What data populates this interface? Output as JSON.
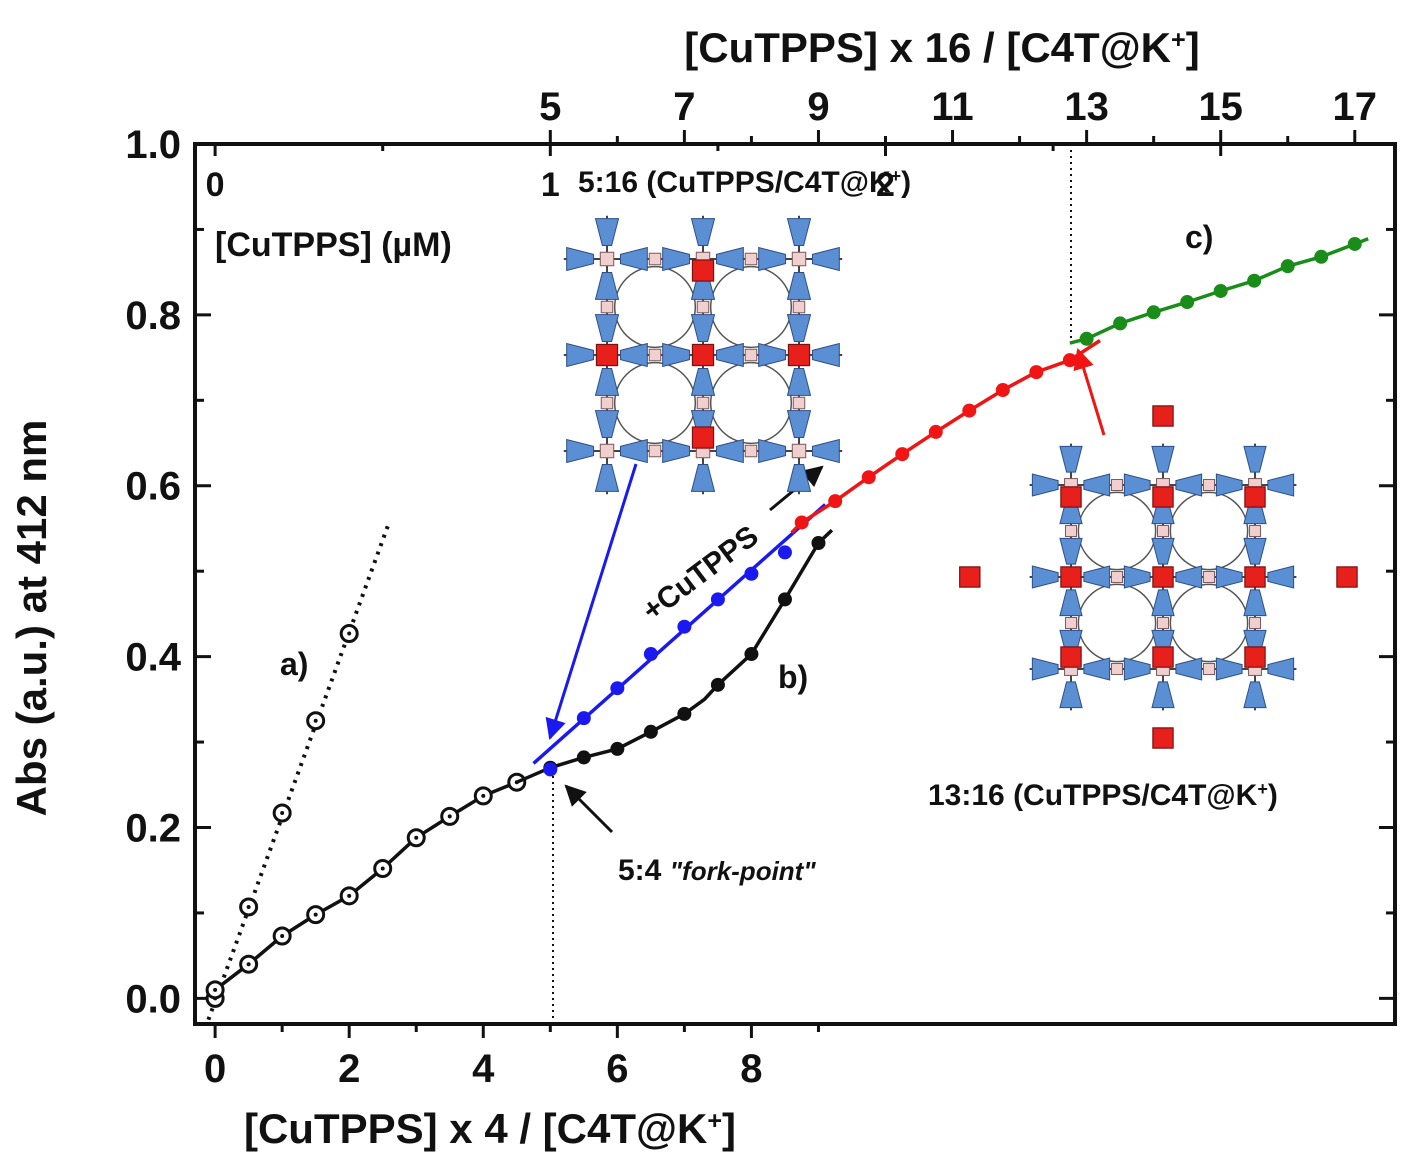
{
  "chart_data": {
    "type": "line",
    "xlabel": "[CuTPPS] x 4 / [C4T@K+]",
    "x2label": "[CuTPPS] x 16 / [C4T@K+]",
    "x3label": "[CuTPPS] (µM)",
    "ylabel": "Abs (a.u.) at 412 nm",
    "xlim": [
      -0.3,
      17.6
    ],
    "ylim": [
      -0.03,
      1.0
    ],
    "x2lim": [
      -1.2,
      70.4
    ],
    "x3lim": [
      -0.06,
      3.52
    ],
    "x_ticks": [
      "0",
      "2",
      "4",
      "6",
      "8"
    ],
    "x_tick_values": [
      0,
      2,
      4,
      6,
      8
    ],
    "x2_ticks": [
      "5",
      "7",
      "9",
      "11",
      "13",
      "15",
      "17"
    ],
    "x2_tick_values": [
      20,
      28,
      36,
      44,
      52,
      60,
      68
    ],
    "x3_ticks": [
      "0",
      "1",
      "2"
    ],
    "x3_tick_values": [
      0,
      1,
      2
    ],
    "y_ticks": [
      "0.0",
      "0.2",
      "0.4",
      "0.6",
      "0.8",
      "1.0"
    ],
    "y_tick_values": [
      0,
      0.2,
      0.4,
      0.6,
      0.8,
      1.0
    ],
    "series": [
      {
        "label_text": "a)",
        "color": "#111111",
        "marker": "open-circle",
        "line": "dotted",
        "x": [
          0,
          0.5,
          1.0,
          1.5,
          2.0
        ],
        "y": [
          0.0,
          0.107,
          0.217,
          0.325,
          0.427
        ],
        "line_x": [
          -0.1,
          2.6
        ],
        "line_y": [
          -0.025,
          0.558
        ]
      },
      {
        "label_text": "",
        "color": "#111111",
        "marker": "open-circle",
        "line": "solid",
        "x": [
          0,
          0.5,
          1.0,
          1.5,
          2.0,
          2.5,
          3.0,
          3.5,
          4.0,
          4.5
        ],
        "y": [
          0.01,
          0.04,
          0.073,
          0.098,
          0.12,
          0.152,
          0.188,
          0.213,
          0.237,
          0.253
        ]
      },
      {
        "label_text": "b)",
        "color": "#111111",
        "marker": "filled-circle",
        "line": "solid",
        "x": [
          5.0,
          5.5,
          6.0,
          6.5,
          7.0,
          7.5,
          8.0,
          8.5,
          9.0
        ],
        "y": [
          0.27,
          0.282,
          0.292,
          0.312,
          0.333,
          0.367,
          0.403,
          0.467,
          0.533
        ],
        "line_x": [
          4.5,
          5.0,
          5.5,
          6.0,
          6.5,
          7.0,
          7.3,
          7.5,
          8.0,
          8.5,
          9.0,
          9.2
        ],
        "line_y": [
          0.253,
          0.27,
          0.282,
          0.292,
          0.312,
          0.333,
          0.35,
          0.367,
          0.403,
          0.467,
          0.533,
          0.548
        ]
      },
      {
        "label_text": "",
        "color": "#1a1af0",
        "marker": "filled-circle",
        "line": "solid",
        "x": [
          5.0,
          5.5,
          6.0,
          6.5,
          7.0,
          7.5,
          8.0,
          8.5
        ],
        "y": [
          0.268,
          0.328,
          0.363,
          0.403,
          0.435,
          0.467,
          0.497,
          0.522
        ],
        "line_x": [
          4.75,
          9.1
        ],
        "line_y": [
          0.275,
          0.578
        ]
      },
      {
        "label_text": "",
        "color": "#f01414",
        "marker": "filled-circle",
        "line": "solid",
        "x": [
          8.75,
          9.25,
          9.75,
          10.25,
          10.75,
          11.25,
          11.75,
          12.25,
          12.75
        ],
        "y": [
          0.557,
          0.582,
          0.61,
          0.637,
          0.663,
          0.688,
          0.712,
          0.733,
          0.747
        ],
        "line_x": [
          8.6,
          8.75,
          9.25,
          9.75,
          10.25,
          10.75,
          11.25,
          11.75,
          12.25,
          12.75,
          13.2
        ],
        "line_y": [
          0.545,
          0.557,
          0.582,
          0.61,
          0.637,
          0.663,
          0.688,
          0.712,
          0.733,
          0.747,
          0.77
        ]
      },
      {
        "label_text": "c)",
        "color": "#1a8c1a",
        "marker": "filled-circle",
        "line": "solid",
        "x": [
          13.0,
          13.5,
          14.0,
          14.5,
          15.0,
          15.5,
          16.0,
          16.5,
          17.0
        ],
        "y": [
          0.772,
          0.79,
          0.803,
          0.815,
          0.828,
          0.84,
          0.857,
          0.868,
          0.883
        ],
        "line_x": [
          12.75,
          13.0,
          13.5,
          14.0,
          14.5,
          15.0,
          15.5,
          16.0,
          16.5,
          17.0,
          17.2
        ],
        "line_y": [
          0.767,
          0.772,
          0.79,
          0.803,
          0.815,
          0.828,
          0.84,
          0.857,
          0.868,
          0.883,
          0.889
        ]
      }
    ],
    "annotations": {
      "fork_point": "5:4 \"fork-point\"",
      "ratio_5_16": "5:16 (CuTPPS/C4T@K+)",
      "ratio_13_16": "13:16 (CuTPPS/C4T@K+)",
      "arrow_label": "+CuTPPS"
    },
    "grid": false,
    "legend": "none"
  },
  "colors": {
    "frame": "#111111",
    "blue": "#1a1af0",
    "red": "#f01414",
    "green": "#1a8c1a",
    "lattice_blue": "#5b8fd3",
    "lattice_square": "#e8201c",
    "lattice_pink": "#f2cfcf"
  }
}
